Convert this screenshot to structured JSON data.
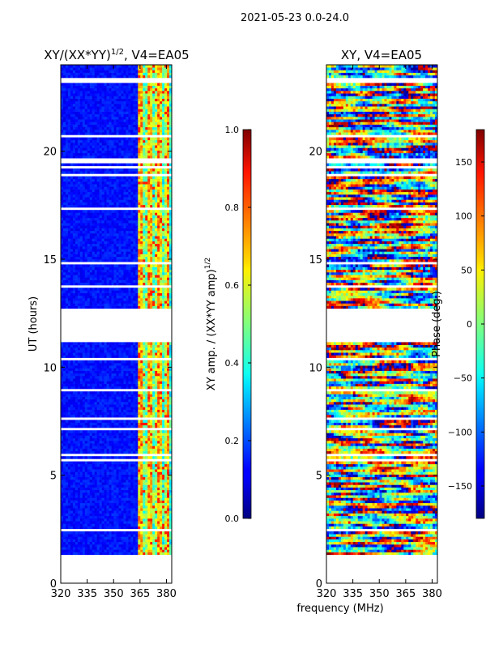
{
  "figure": {
    "suptitle": "2021-05-23 0.0-24.0",
    "xlabel_shared": "frequency (MHz)"
  },
  "colors": {
    "axis": "#000000",
    "background": "#ffffff",
    "gap": "#ffffff"
  },
  "chart_data": [
    {
      "type": "heatmap",
      "name": "normalized-amplitude",
      "title_prefix": "XY/(XX*YY)",
      "title_exponent": "1/2",
      "title_suffix": ", V4=EA05",
      "xlabel": "",
      "ylabel": "UT (hours)",
      "xlim": [
        320,
        383
      ],
      "ylim": [
        0,
        24
      ],
      "xticks": [
        320,
        335,
        350,
        365,
        380
      ],
      "yticks": [
        0,
        5,
        10,
        15,
        20
      ],
      "colormap": "jet",
      "colorbar": {
        "label": "XY amp. / (XX*YY amp)",
        "label_exponent": "1/2",
        "range": [
          0.0,
          1.0
        ],
        "ticks": [
          0.0,
          0.2,
          0.4,
          0.6,
          0.8,
          1.0
        ],
        "tick_labels": [
          "0.0",
          "0.2",
          "0.4",
          "0.6",
          "0.8",
          "1.0"
        ]
      },
      "data_gaps_hours": [
        [
          0.0,
          1.3
        ],
        [
          11.1,
          12.7
        ]
      ],
      "description_values": {
        "low_band_typical": 0.1,
        "high_band_365_383_typical": 0.45,
        "high_band_peaks": 0.85
      }
    },
    {
      "type": "heatmap",
      "name": "phase",
      "title": "XY, V4=EA05",
      "xlabel": "",
      "ylabel": "",
      "xlim": [
        320,
        383
      ],
      "ylim": [
        0,
        24
      ],
      "xticks": [
        320,
        335,
        350,
        365,
        380
      ],
      "yticks": [
        0,
        5,
        10,
        15,
        20
      ],
      "colormap": "jet",
      "colorbar": {
        "label": "Phase (deg.)",
        "range": [
          -180,
          180
        ],
        "ticks": [
          -150,
          -100,
          -50,
          0,
          50,
          100,
          150
        ],
        "tick_labels": [
          "−150",
          "−100",
          "−50",
          "0",
          "50",
          "100",
          "150"
        ]
      },
      "data_gaps_hours": [
        [
          0.0,
          1.3
        ],
        [
          11.1,
          12.7
        ]
      ]
    }
  ]
}
